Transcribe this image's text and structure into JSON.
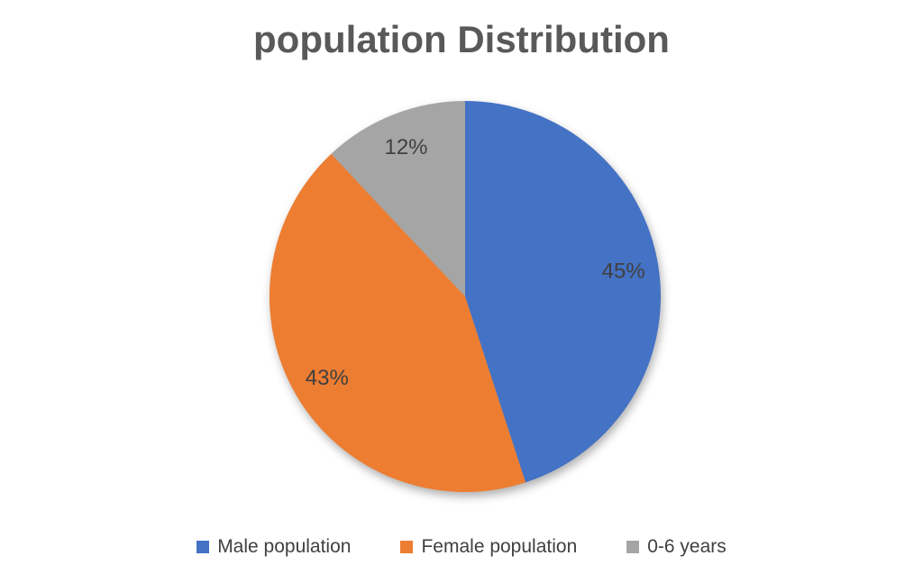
{
  "chart_data": {
    "type": "pie",
    "title": "population Distribution",
    "series": [
      {
        "name": "Male population",
        "value": 45,
        "label": "45%",
        "color": "#4472C4"
      },
      {
        "name": "Female population",
        "value": 43,
        "label": "43%",
        "color": "#ED7D31"
      },
      {
        "name": "0-6 years",
        "value": 12,
        "label": "12%",
        "color": "#A5A5A5"
      }
    ],
    "start_angle_deg": 0,
    "direction": "clockwise",
    "legend_position": "bottom",
    "title_color": "#595959",
    "label_color": "#404040",
    "legend_text_color": "#404040"
  }
}
